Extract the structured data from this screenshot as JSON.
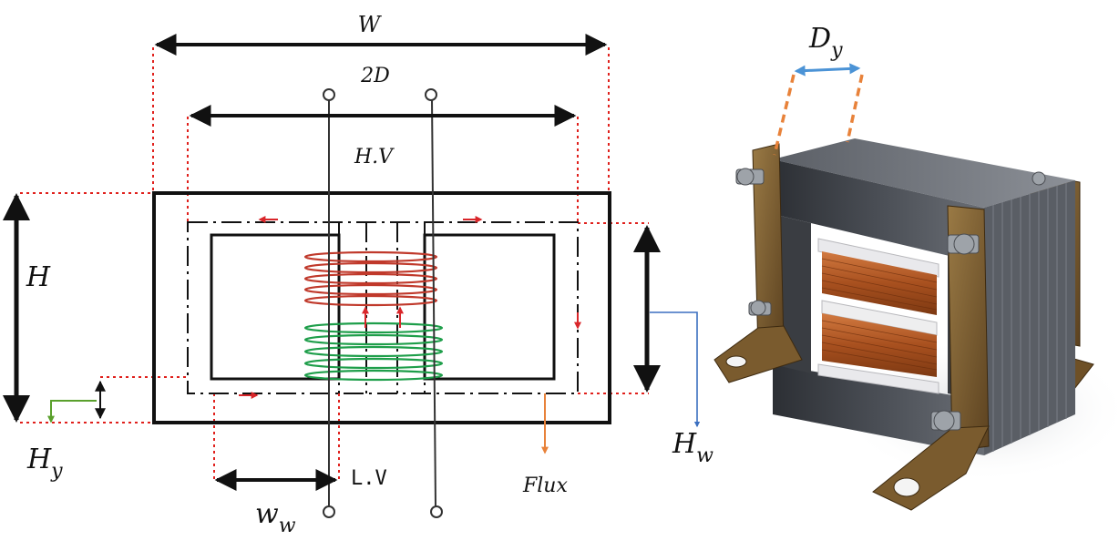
{
  "labels": {
    "width": "W",
    "two_d": "2D",
    "high_voltage": "H.V",
    "low_voltage": "L.V",
    "height": "H",
    "window_height": "H",
    "window_height_sub": "w",
    "yoke_height": "H",
    "yoke_height_sub": "y",
    "window_width": "w",
    "window_width_sub": "w",
    "yoke_depth": "D",
    "yoke_depth_sub": "y",
    "flux": "Flux"
  },
  "colors": {
    "core_outline": "#111111",
    "guide_dotted": "#e0201c",
    "hv_winding": "#c0392b",
    "lv_winding": "#1e9e4a",
    "flux_arrow": "#d9262a",
    "flux_pointer": "#e8823a",
    "window_height_pointer": "#3b6fc0",
    "yoke_height_pointer": "#5aa02c",
    "yoke_depth_arrow": "#4b93d6",
    "yoke_depth_guides": "#e8823a",
    "copper": "#b85c28",
    "bracket": "#7a5b2e",
    "laminations": "#3c3f44"
  }
}
